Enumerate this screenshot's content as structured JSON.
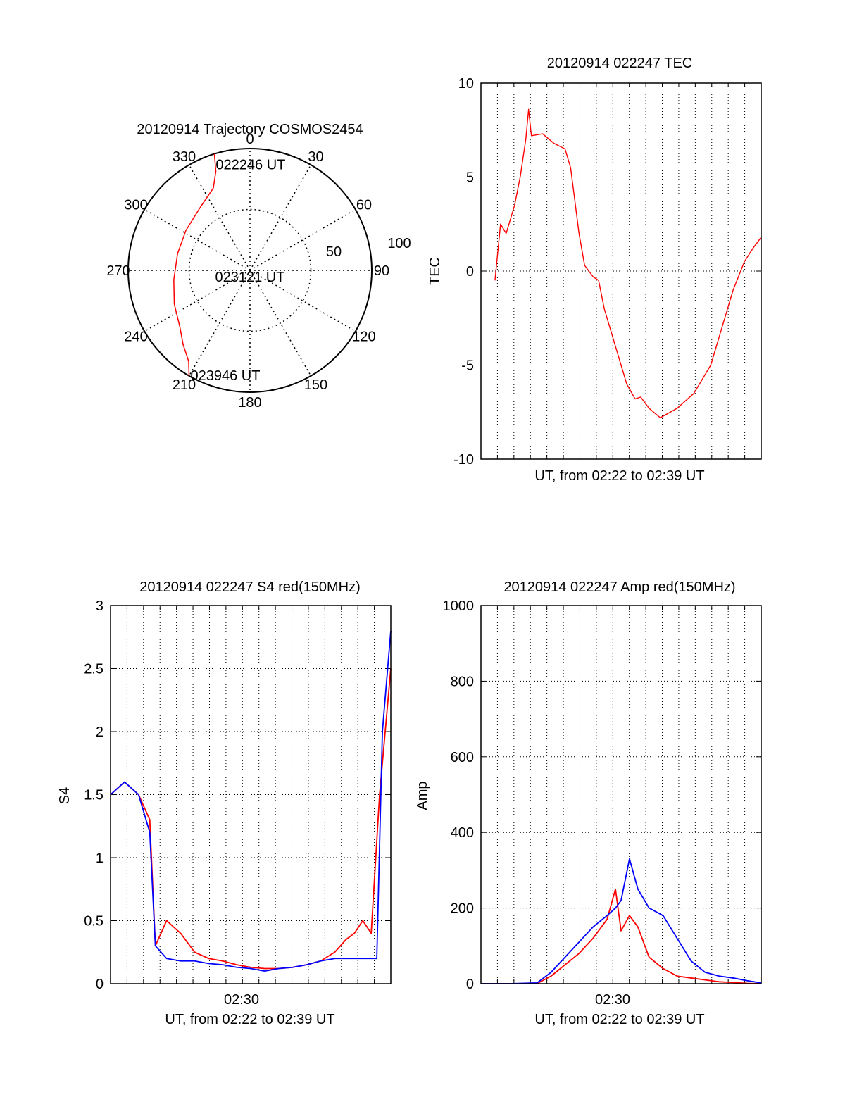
{
  "colors": {
    "red": "#ff0000",
    "blue": "#0000ff",
    "black": "#000000",
    "grid": "#000000"
  },
  "chart_data": [
    {
      "id": "polar",
      "type": "polar-trajectory",
      "title": "20120914 Trajectory COSMOS2454",
      "angle_labels": [
        "0",
        "30",
        "60",
        "90",
        "120",
        "150",
        "180",
        "210",
        "240",
        "270",
        "300",
        "330"
      ],
      "radius_labels": [
        "50",
        "100"
      ],
      "rlim": [
        0,
        100
      ],
      "trajectory": {
        "color": "red",
        "points_az_el": [
          [
            343,
            100
          ],
          [
            341,
            86
          ],
          [
            336,
            74
          ],
          [
            322,
            66
          ],
          [
            302,
            62
          ],
          [
            283,
            61
          ],
          [
            263,
            63
          ],
          [
            246,
            68
          ],
          [
            231,
            74
          ],
          [
            222,
            82
          ],
          [
            214,
            90
          ],
          [
            210,
            100
          ]
        ]
      },
      "annotations": [
        {
          "text": "022246 UT",
          "at_point": 0
        },
        {
          "text": "023121 UT",
          "at_center": true
        },
        {
          "text": "023946 UT",
          "at_point": 11
        }
      ]
    },
    {
      "id": "tec",
      "type": "line",
      "title": "20120914 022247 TEC",
      "ylabel": "TEC",
      "xlabel": "UT, from 02:22 to 02:39 UT",
      "ylim": [
        -10,
        10
      ],
      "yticks": [
        "10",
        "5",
        "0",
        "-5",
        "-10"
      ],
      "xlim": [
        0,
        1
      ],
      "series": [
        {
          "color": "red",
          "x": [
            0.05,
            0.07,
            0.09,
            0.12,
            0.14,
            0.16,
            0.17,
            0.18,
            0.22,
            0.26,
            0.3,
            0.32,
            0.35,
            0.37,
            0.4,
            0.42,
            0.44,
            0.48,
            0.52,
            0.55,
            0.57,
            0.6,
            0.64,
            0.7,
            0.76,
            0.82,
            0.86,
            0.9,
            0.94,
            0.97,
            1.0
          ],
          "values": [
            -0.5,
            2.5,
            2.0,
            3.5,
            5.0,
            7.0,
            8.6,
            7.2,
            7.3,
            6.8,
            6.5,
            5.5,
            2.0,
            0.3,
            -0.3,
            -0.5,
            -2.0,
            -4.0,
            -6.0,
            -6.8,
            -6.7,
            -7.3,
            -7.8,
            -7.3,
            -6.5,
            -5.0,
            -3.0,
            -1.0,
            0.5,
            1.2,
            1.8
          ]
        }
      ]
    },
    {
      "id": "s4",
      "type": "line",
      "title": "20120914 022247 S4 red(150MHz)",
      "ylabel": "S4",
      "xlabel": "UT, from 02:22 to 02:39 UT",
      "xticklabels": [
        "02:30"
      ],
      "ylim": [
        0,
        3
      ],
      "yticks": [
        "3",
        "2.5",
        "2",
        "1.5",
        "1",
        "0.5",
        "0"
      ],
      "xlim": [
        0,
        1
      ],
      "series": [
        {
          "name": "red",
          "color": "red",
          "x": [
            0,
            0.05,
            0.1,
            0.14,
            0.16,
            0.2,
            0.25,
            0.3,
            0.35,
            0.4,
            0.45,
            0.5,
            0.55,
            0.6,
            0.65,
            0.7,
            0.75,
            0.8,
            0.84,
            0.87,
            0.9,
            0.93,
            0.96,
            1.0
          ],
          "values": [
            1.5,
            1.6,
            1.5,
            1.3,
            0.3,
            0.5,
            0.4,
            0.25,
            0.2,
            0.18,
            0.15,
            0.13,
            0.12,
            0.12,
            0.13,
            0.15,
            0.18,
            0.25,
            0.35,
            0.4,
            0.5,
            0.4,
            1.5,
            2.5
          ]
        },
        {
          "name": "blue",
          "color": "blue",
          "x": [
            0,
            0.05,
            0.1,
            0.14,
            0.16,
            0.2,
            0.25,
            0.3,
            0.35,
            0.4,
            0.45,
            0.5,
            0.55,
            0.6,
            0.65,
            0.7,
            0.75,
            0.8,
            0.85,
            0.9,
            0.95,
            0.97,
            1.0
          ],
          "values": [
            1.5,
            1.6,
            1.5,
            1.2,
            0.3,
            0.2,
            0.18,
            0.18,
            0.16,
            0.15,
            0.13,
            0.12,
            0.1,
            0.12,
            0.13,
            0.15,
            0.18,
            0.2,
            0.2,
            0.2,
            0.2,
            2.0,
            2.8
          ]
        }
      ]
    },
    {
      "id": "amp",
      "type": "line",
      "title": "20120914 022247 Amp red(150MHz)",
      "ylabel": "Amp",
      "xlabel": "UT, from 02:22 to 02:39 UT",
      "xticklabels": [
        "02:30"
      ],
      "ylim": [
        0,
        1000
      ],
      "yticks": [
        "1000",
        "800",
        "600",
        "400",
        "200",
        "0"
      ],
      "xlim": [
        0,
        1
      ],
      "series": [
        {
          "name": "red",
          "color": "red",
          "x": [
            0,
            0.1,
            0.2,
            0.25,
            0.3,
            0.35,
            0.4,
            0.45,
            0.48,
            0.5,
            0.53,
            0.56,
            0.6,
            0.65,
            0.7,
            0.75,
            0.8,
            0.85,
            0.9,
            0.95,
            1.0
          ],
          "values": [
            0,
            0,
            0,
            20,
            50,
            80,
            120,
            170,
            250,
            140,
            180,
            150,
            70,
            40,
            20,
            15,
            10,
            5,
            3,
            1,
            0
          ]
        },
        {
          "name": "blue",
          "color": "blue",
          "x": [
            0,
            0.1,
            0.2,
            0.25,
            0.3,
            0.35,
            0.4,
            0.45,
            0.48,
            0.5,
            0.53,
            0.56,
            0.6,
            0.65,
            0.7,
            0.75,
            0.8,
            0.85,
            0.9,
            0.95,
            1.0
          ],
          "values": [
            0,
            0,
            2,
            30,
            70,
            110,
            150,
            180,
            200,
            220,
            330,
            250,
            200,
            180,
            120,
            60,
            30,
            20,
            15,
            8,
            2
          ]
        }
      ]
    }
  ]
}
